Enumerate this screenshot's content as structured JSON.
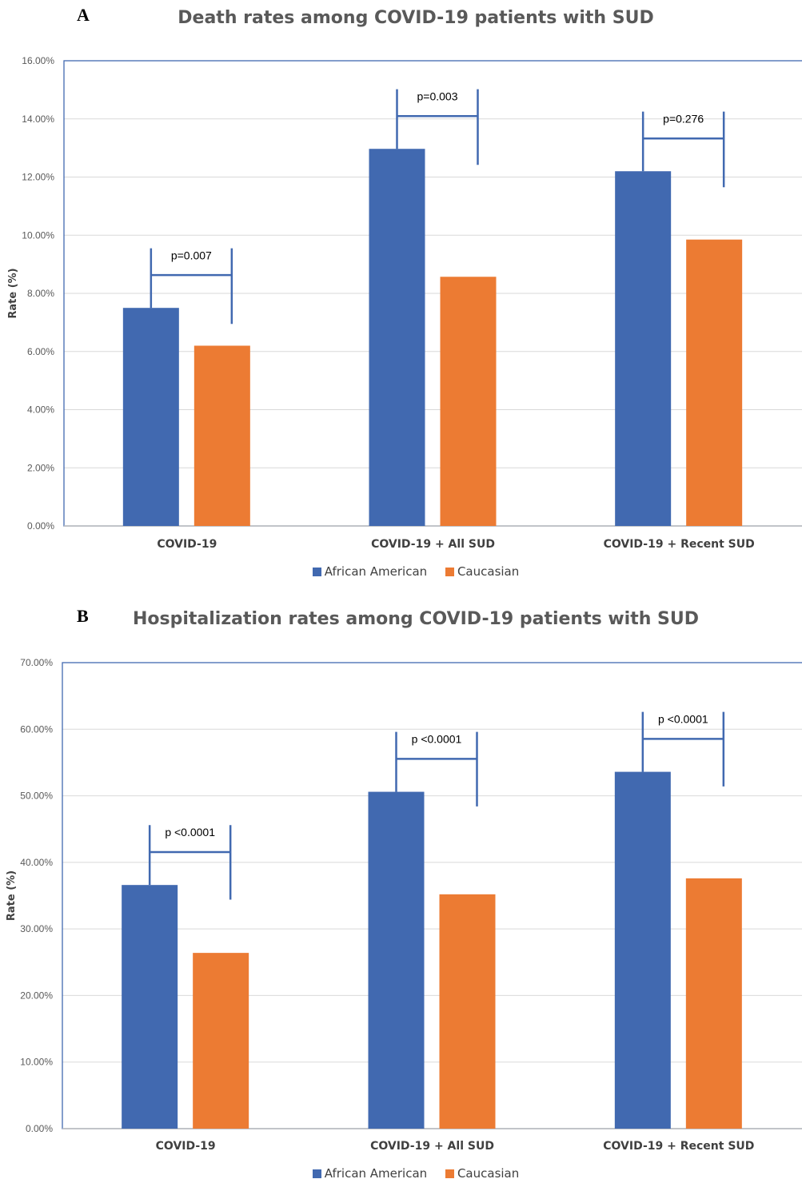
{
  "colors": {
    "african_american": "#4169b0",
    "caucasian": "#ec7b33",
    "grid": "#d9d9d9",
    "frame": "#4169b0"
  },
  "panels": [
    {
      "letter": "A",
      "title": "Death rates among COVID-19 patients with SUD",
      "legend": [
        "African American",
        "Caucasian"
      ]
    },
    {
      "letter": "B",
      "title": "Hospitalization  rates among COVID-19 patients with  SUD",
      "legend": [
        "African American",
        "Caucasian"
      ]
    }
  ],
  "chart_data": [
    {
      "type": "bar",
      "title": "Death rates among COVID-19 patients with SUD",
      "xlabel": "",
      "ylabel": "Rate (%)",
      "categories": [
        "COVID-19",
        "COVID-19 + All SUD",
        "COVID-19 + Recent SUD"
      ],
      "series": [
        {
          "name": "African American",
          "values": [
            7.5,
            12.97,
            12.2
          ]
        },
        {
          "name": "Caucasian",
          "values": [
            6.2,
            8.57,
            9.85
          ]
        }
      ],
      "ylim": [
        0,
        16
      ],
      "yticks": [
        0,
        2,
        4,
        6,
        8,
        10,
        12,
        14,
        16
      ],
      "ytick_labels": [
        "0.00%",
        "2.00%",
        "4.00%",
        "6.00%",
        "8.00%",
        "10.00%",
        "12.00%",
        "14.00%",
        "16.00%"
      ],
      "grid": true,
      "legend_position": "bottom",
      "annotations": [
        "p=0.007",
        "p=0.003",
        "p=0.276"
      ]
    },
    {
      "type": "bar",
      "title": "Hospitalization  rates among COVID-19 patients with  SUD",
      "xlabel": "",
      "ylabel": "Rate (%)",
      "categories": [
        "COVID-19",
        "COVID-19 + All SUD",
        "COVID-19 + Recent SUD"
      ],
      "series": [
        {
          "name": "African American",
          "values": [
            36.6,
            50.6,
            53.6
          ]
        },
        {
          "name": "Caucasian",
          "values": [
            26.4,
            35.2,
            37.6
          ]
        }
      ],
      "ylim": [
        0,
        70
      ],
      "yticks": [
        0,
        10,
        20,
        30,
        40,
        50,
        60,
        70
      ],
      "ytick_labels": [
        "0.00%",
        "10.00%",
        "20.00%",
        "30.00%",
        "40.00%",
        "50.00%",
        "60.00%",
        "70.00%"
      ],
      "grid": true,
      "legend_position": "bottom",
      "annotations": [
        "p <0.0001",
        "p <0.0001",
        "p <0.0001"
      ]
    }
  ]
}
